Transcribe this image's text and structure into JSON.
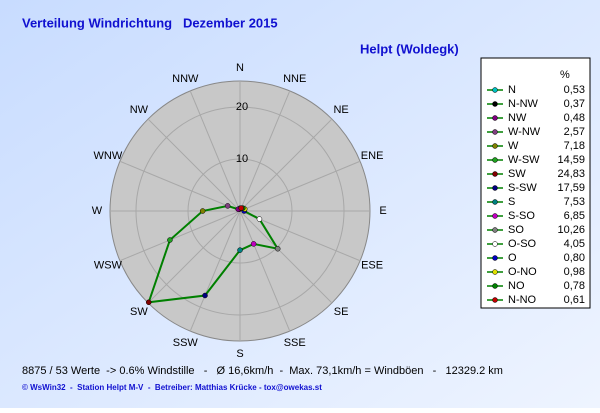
{
  "chart_data": {
    "type": "radar",
    "title": "Verteilung Windrichtung   Dezember 2015",
    "subtitle": "Helpt (Woldegk)",
    "categories": [
      "N",
      "NNW",
      "NW",
      "WNW",
      "W",
      "WSW",
      "SW",
      "SSW",
      "S",
      "SSE",
      "SE",
      "ESE",
      "E",
      "ENE",
      "NE",
      "NNE"
    ],
    "legend_title": "%",
    "series": [
      {
        "color": "#008000",
        "names": [
          "N",
          "N-NW",
          "NW",
          "W-NW",
          "W",
          "W-SW",
          "SW",
          "S-SW",
          "S",
          "S-SO",
          "SO",
          "O-SO",
          "O",
          "O-NO",
          "NO",
          "N-NO"
        ],
        "values": [
          0.53,
          0.37,
          0.48,
          2.57,
          7.18,
          14.59,
          24.83,
          17.59,
          7.53,
          6.85,
          10.26,
          4.05,
          0.8,
          0.98,
          0.78,
          0.61
        ],
        "value_labels": [
          "0,53",
          "0,37",
          "0,48",
          "2,57",
          "7,18",
          "14,59",
          "24,83",
          "17,59",
          "7,53",
          "6,85",
          "10,26",
          "4,05",
          "0,80",
          "0,98",
          "0,78",
          "0,61"
        ],
        "point_colors": [
          "#00c0c0",
          "#000000",
          "#800080",
          "#804080",
          "#808000",
          "#20a020",
          "#800000",
          "#000080",
          "#008080",
          "#c000c0",
          "#808080",
          "#ffffff",
          "#0000c0",
          "#e0e000",
          "#008000",
          "#c00000"
        ]
      }
    ],
    "rlim": [
      0,
      25
    ],
    "rticks": [
      10,
      20
    ],
    "grid": true
  },
  "footer": {
    "stats": "8875 / 53 Werte  -> 0.6% Windstille   -   Ø 16,6km/h  -  Max. 73,1km/h = Windböen   -   12329.2 km",
    "credits": "© WsWin32  -  Station Helpt M-V  -  Betreiber: Matthias Krücke - tox@owekas.st"
  }
}
